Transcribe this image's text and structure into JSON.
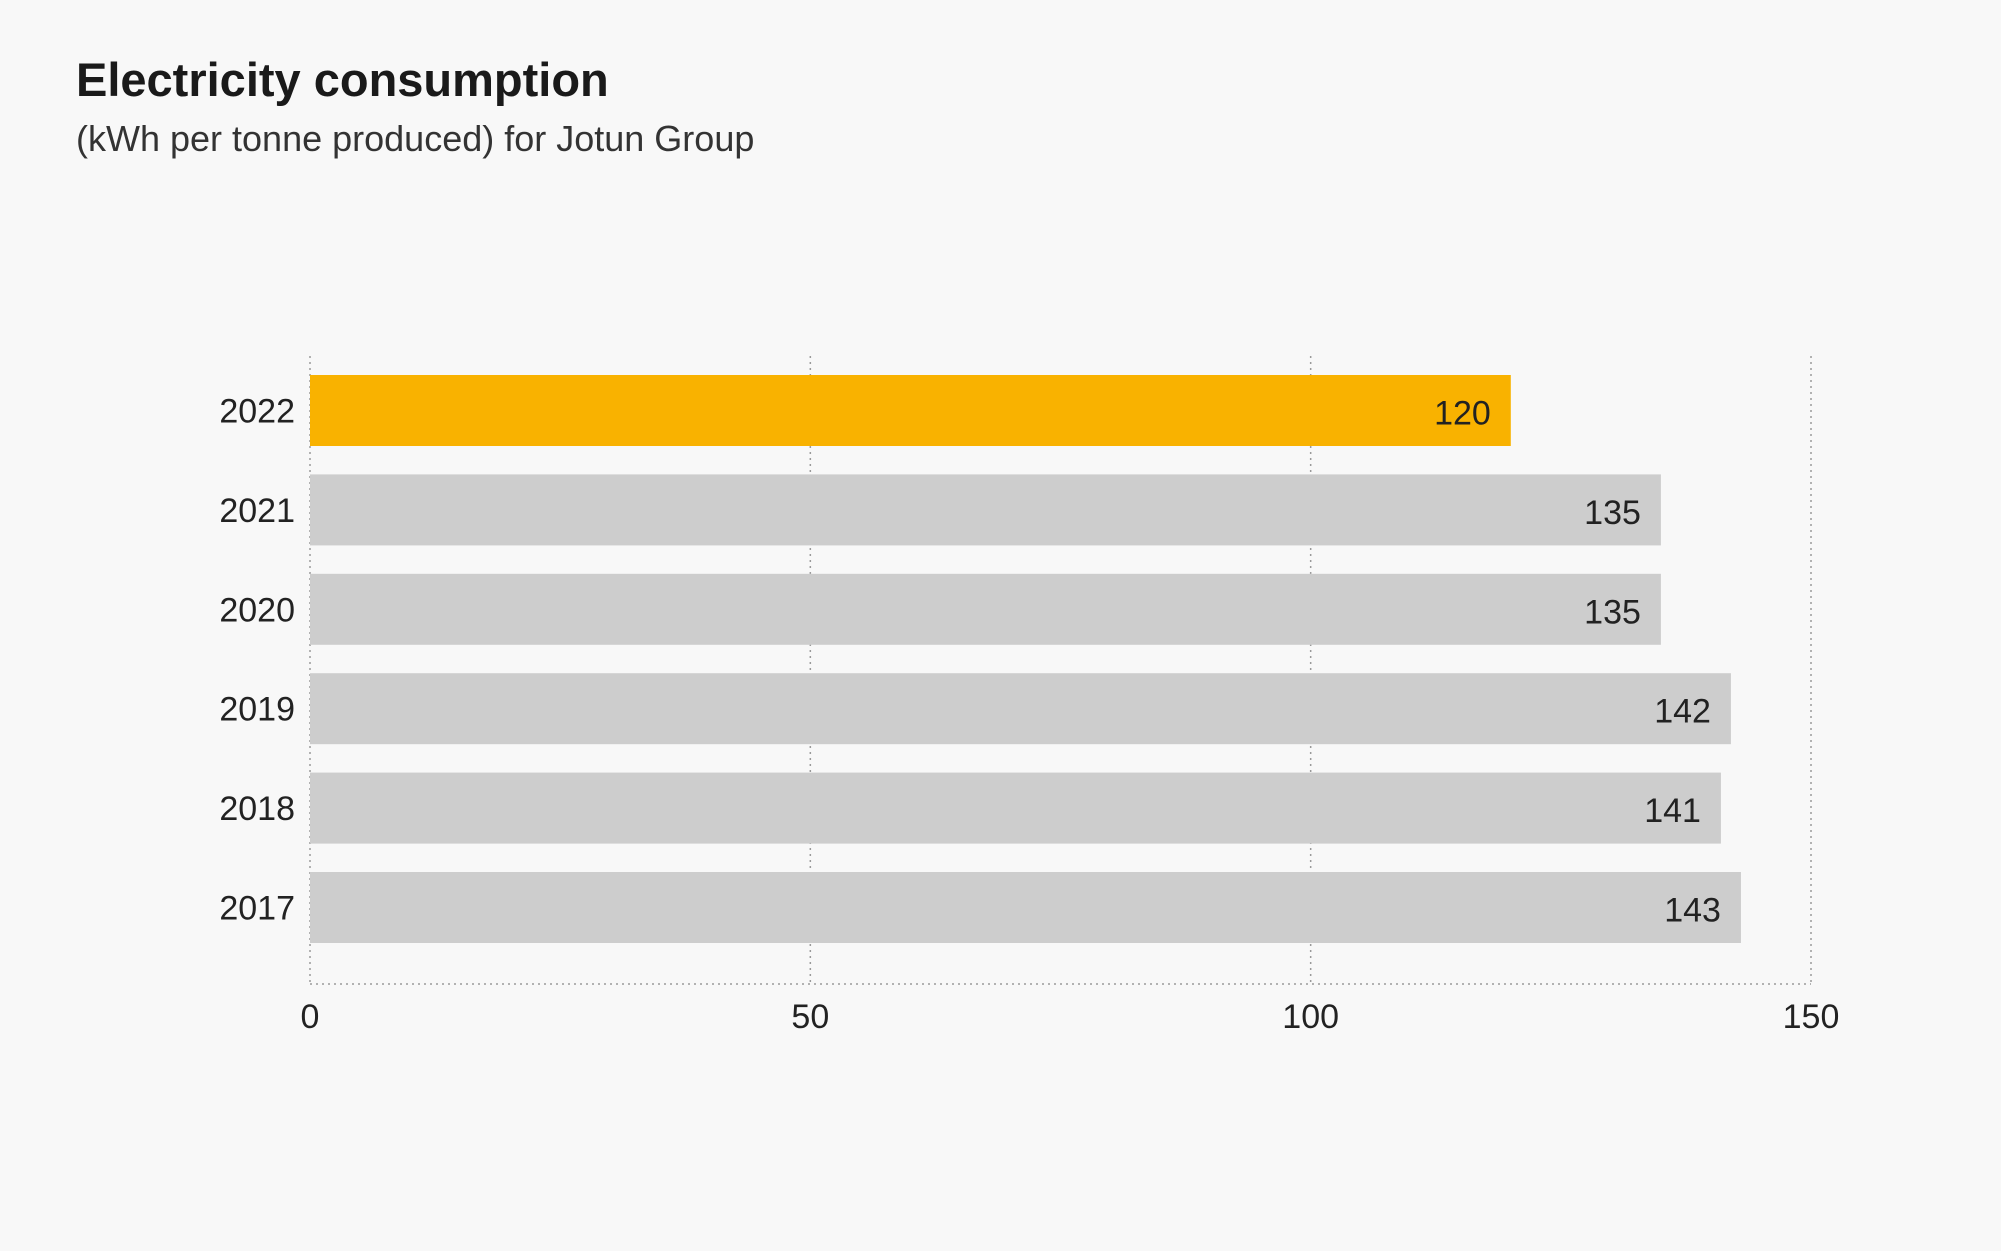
{
  "chart_data": {
    "type": "bar",
    "orientation": "horizontal",
    "title": "Electricity consumption",
    "subtitle": "(kWh per tonne produced) for Jotun Group",
    "categories": [
      "2022",
      "2021",
      "2020",
      "2019",
      "2018",
      "2017"
    ],
    "values": [
      120,
      135,
      135,
      142,
      141,
      143
    ],
    "highlight_category": "2022",
    "colors": {
      "highlight": "#f9b200",
      "default": "#cdcdcd",
      "grid": "#9a9a9a",
      "background": "#f8f8f8",
      "text": "#222222"
    },
    "xlim": [
      0,
      150
    ],
    "xticks": [
      0,
      50,
      100,
      150
    ],
    "grid": "vertical dotted",
    "data_labels": "inside-end",
    "xlabel": "",
    "ylabel": ""
  }
}
